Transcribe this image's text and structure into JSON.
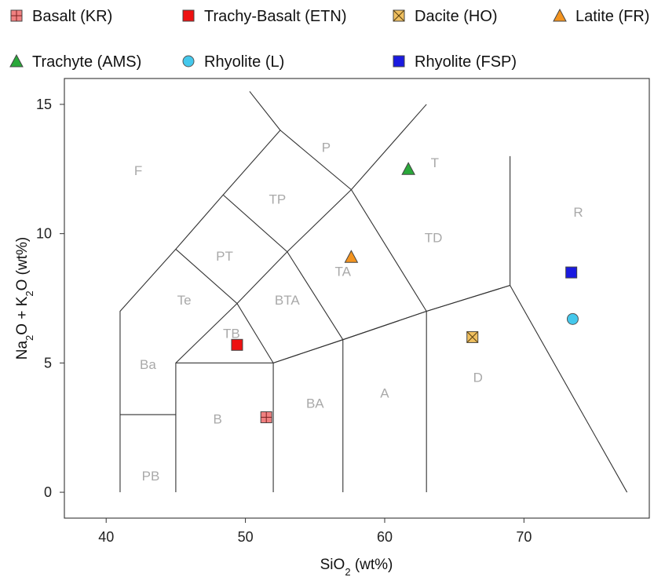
{
  "chart_data": {
    "type": "scatter",
    "xlabel": {
      "base": "SiO",
      "sub": "2",
      "unit": " (wt%)"
    },
    "ylabel": {
      "parts": [
        "Na",
        "2",
        "O + K",
        "2",
        "O (wt%)"
      ]
    },
    "xlim": [
      37,
      79
    ],
    "ylim": [
      -1,
      16
    ],
    "x_ticks": [
      40,
      50,
      60,
      70
    ],
    "y_ticks": [
      0,
      5,
      10,
      15
    ],
    "grid": false,
    "legend_placement": "top",
    "series": [
      {
        "name": "Basalt (KR)",
        "marker": "square-cross",
        "color": "#f08080",
        "points": [
          [
            51.5,
            2.9
          ]
        ]
      },
      {
        "name": "Trachy-Basalt (ETN)",
        "marker": "square",
        "color": "#ee1111",
        "points": [
          [
            49.4,
            5.7
          ]
        ]
      },
      {
        "name": "Dacite (HO)",
        "marker": "square-x",
        "color": "#f0c060",
        "points": [
          [
            66.3,
            6.0
          ]
        ]
      },
      {
        "name": "Latite (FR)",
        "marker": "triangle",
        "color": "#f39420",
        "points": [
          [
            57.6,
            9.1
          ]
        ]
      },
      {
        "name": "Trachyte (AMS)",
        "marker": "triangle",
        "color": "#2aa83a",
        "points": [
          [
            61.7,
            12.5
          ]
        ]
      },
      {
        "name": "Rhyolite (L)",
        "marker": "circle",
        "color": "#44c8ec",
        "points": [
          [
            73.5,
            6.7
          ]
        ]
      },
      {
        "name": "Rhyolite (FSP)",
        "marker": "square",
        "color": "#1a1ae0",
        "points": [
          [
            73.4,
            8.5
          ]
        ]
      }
    ],
    "boundaries": [
      [
        [
          41,
          0
        ],
        [
          41,
          7
        ],
        [
          45,
          9.4
        ],
        [
          48.4,
          11.5
        ],
        [
          52.5,
          14
        ],
        [
          57.6,
          11.7
        ],
        [
          63,
          15
        ]
      ],
      [
        [
          41,
          3
        ],
        [
          45,
          3
        ]
      ],
      [
        [
          45,
          0
        ],
        [
          45,
          5
        ],
        [
          49.4,
          7.3
        ],
        [
          53,
          9.3
        ],
        [
          57.6,
          11.7
        ]
      ],
      [
        [
          45,
          5
        ],
        [
          52,
          5
        ],
        [
          57,
          5.9
        ],
        [
          63,
          7
        ],
        [
          69,
          8
        ],
        [
          77.4,
          0
        ]
      ],
      [
        [
          52,
          0
        ],
        [
          52,
          5
        ],
        [
          49.4,
          7.3
        ],
        [
          45,
          9.4
        ]
      ],
      [
        [
          52,
          5
        ],
        [
          57,
          5.9
        ],
        [
          63,
          7
        ],
        [
          69,
          8
        ]
      ],
      [
        [
          57,
          0
        ],
        [
          57,
          5.9
        ],
        [
          53,
          9.3
        ],
        [
          48.4,
          11.5
        ]
      ],
      [
        [
          63,
          0
        ],
        [
          63,
          7
        ],
        [
          57.6,
          11.7
        ]
      ],
      [
        [
          52.5,
          14
        ],
        [
          50.3,
          15.5
        ]
      ],
      [
        [
          69,
          8
        ],
        [
          69,
          13
        ]
      ]
    ],
    "field_labels": [
      {
        "text": "F",
        "x": 42.3,
        "y": 12.4
      },
      {
        "text": "P",
        "x": 55.8,
        "y": 13.3
      },
      {
        "text": "T",
        "x": 63.6,
        "y": 12.7
      },
      {
        "text": "R",
        "x": 73.9,
        "y": 10.8
      },
      {
        "text": "TP",
        "x": 52.3,
        "y": 11.3
      },
      {
        "text": "PT",
        "x": 48.5,
        "y": 9.1
      },
      {
        "text": "TD",
        "x": 63.5,
        "y": 9.8
      },
      {
        "text": "TA",
        "x": 57.0,
        "y": 8.5
      },
      {
        "text": "Te",
        "x": 45.6,
        "y": 7.4
      },
      {
        "text": "BTA",
        "x": 53.0,
        "y": 7.4
      },
      {
        "text": "TB",
        "x": 49.0,
        "y": 6.1
      },
      {
        "text": "Ba",
        "x": 43.0,
        "y": 4.9
      },
      {
        "text": "D",
        "x": 66.7,
        "y": 4.4
      },
      {
        "text": "A",
        "x": 60.0,
        "y": 3.8
      },
      {
        "text": "BA",
        "x": 55.0,
        "y": 3.4
      },
      {
        "text": "B",
        "x": 48.0,
        "y": 2.8
      },
      {
        "text": "PB",
        "x": 43.2,
        "y": 0.6
      }
    ]
  }
}
